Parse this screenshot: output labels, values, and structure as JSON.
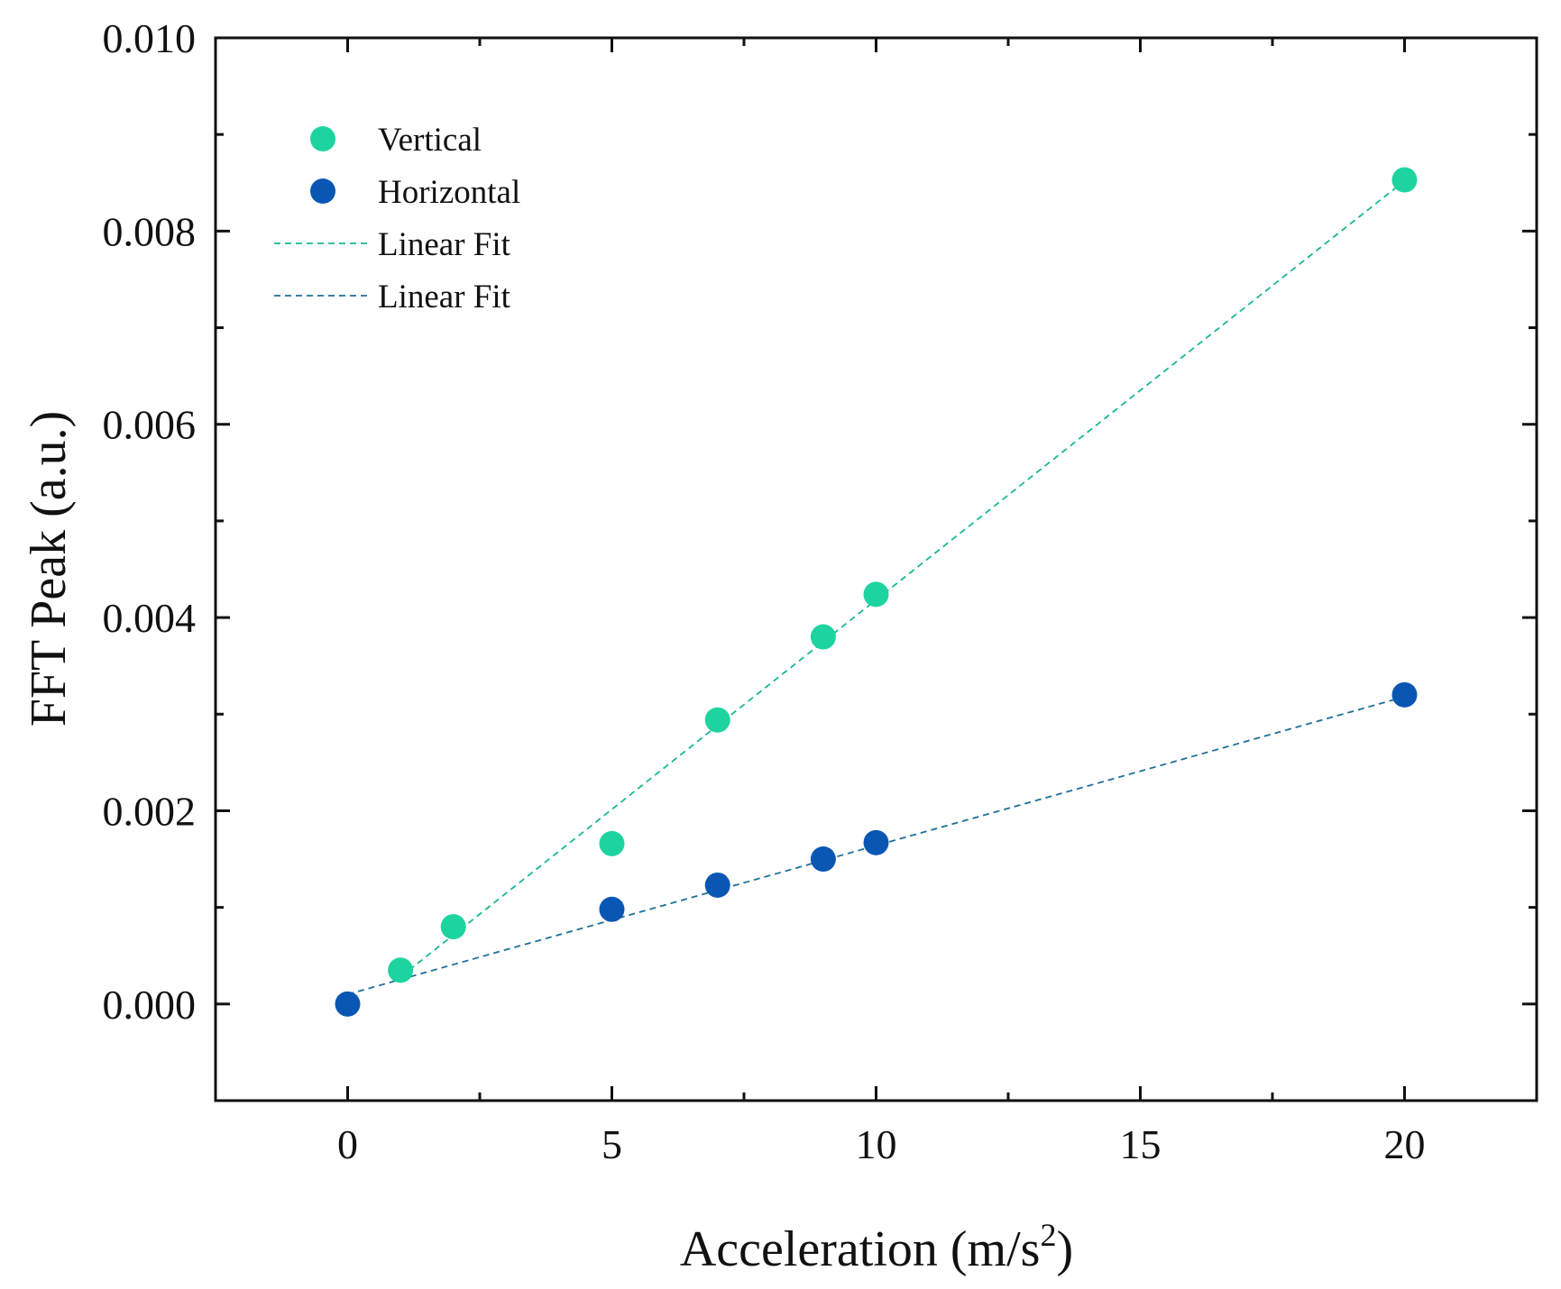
{
  "chart_data": {
    "type": "scatter",
    "title": "",
    "xlabel": "Acceleration (m/s",
    "xlabel_superscript": "2",
    "xlabel_suffix": ")",
    "ylabel": "FFT Peak (a.u.)",
    "xlim": [
      -2.5,
      22.5
    ],
    "ylim": [
      -0.001,
      0.01
    ],
    "x_ticks": [
      0,
      5,
      10,
      15,
      20
    ],
    "x_tick_labels": [
      "0",
      "5",
      "10",
      "15",
      "20"
    ],
    "x_minor_ticks": [
      2.5,
      7.5,
      12.5,
      17.5
    ],
    "y_ticks": [
      0.0,
      0.002,
      0.004,
      0.006,
      0.008,
      0.01
    ],
    "y_tick_labels": [
      "0.000",
      "0.002",
      "0.004",
      "0.006",
      "0.008",
      "0.010"
    ],
    "y_minor_ticks": [
      0.001,
      0.003,
      0.005,
      0.007,
      0.009
    ],
    "grid": false,
    "legend_position": "top-left",
    "series": [
      {
        "name": "Vertical",
        "color": "#1dd4a0",
        "x": [
          1,
          2,
          5,
          7,
          9,
          10,
          20
        ],
        "y": [
          0.00035,
          0.0008,
          0.00166,
          0.00294,
          0.0038,
          0.00424,
          0.00853
        ]
      },
      {
        "name": "Horizontal",
        "color": "#0a57b3",
        "x": [
          0,
          5,
          7,
          9,
          10,
          20
        ],
        "y": [
          0.0,
          0.00098,
          0.00123,
          0.0015,
          0.00167,
          0.0032
        ]
      }
    ],
    "fits": [
      {
        "name": "Linear Fit",
        "color": "#1ab892",
        "x": [
          1,
          20
        ],
        "y": [
          0.00028,
          0.00852
        ]
      },
      {
        "name": "Linear Fit",
        "color": "#1f6f9a",
        "x": [
          0,
          20
        ],
        "y": [
          0.0001,
          0.00318
        ]
      }
    ]
  }
}
